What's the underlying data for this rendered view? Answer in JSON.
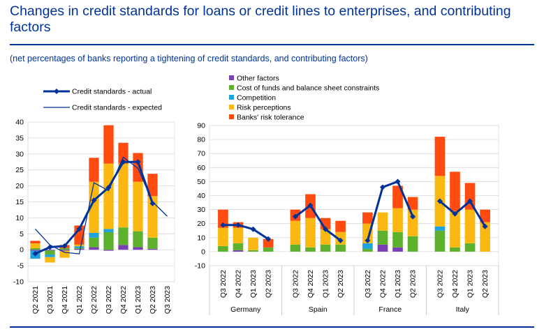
{
  "title": "Changes in credit standards for loans or credit lines to enterprises, and contributing factors",
  "subtitle": "(net percentages of banks reporting a tightening of credit standards, and contributing factors)",
  "colors": {
    "other": "#7B3FB5",
    "cost": "#5DB12D",
    "competition": "#1FA3DC",
    "risk": "#FBB813",
    "tolerance": "#FF4B0F",
    "line": "#003399",
    "grid": "#d9d9d9"
  },
  "chart_data": [
    {
      "type": "bar",
      "stacked": true,
      "x": [
        "Q2 2021",
        "Q3 2021",
        "Q4 2021",
        "Q1 2022",
        "Q2 2022",
        "Q3 2022",
        "Q4 2022",
        "Q1 2023",
        "Q2 2023",
        "Q3 2023"
      ],
      "ylim": [
        -10,
        40
      ],
      "yticks": [
        -10,
        -5,
        0,
        5,
        10,
        15,
        20,
        25,
        30,
        35,
        40
      ],
      "grid": true,
      "legend_position": "top-left",
      "series": [
        {
          "name": "Other factors",
          "key": "other",
          "values": [
            -0.3,
            -0.2,
            -0.3,
            0.3,
            0.8,
            -0.3,
            1.5,
            0.8,
            0.3,
            null
          ]
        },
        {
          "name": "Cost of funds and balance sheet constraints",
          "key": "cost",
          "values": [
            0.5,
            -1.3,
            0.5,
            0.3,
            3,
            5.5,
            5.5,
            5,
            3.5,
            null
          ]
        },
        {
          "name": "Competition",
          "key": "competition",
          "values": [
            -2.5,
            -0.8,
            0,
            0.5,
            1.5,
            1,
            0,
            0,
            0,
            null
          ]
        },
        {
          "name": "Risk perceptions",
          "key": "risk",
          "values": [
            1.5,
            -1.7,
            -2.2,
            0.5,
            16,
            20.5,
            20,
            15.5,
            13,
            null
          ]
        },
        {
          "name": "Banks' risk tolerance",
          "key": "tolerance",
          "values": [
            0.8,
            0,
            1,
            6,
            7.5,
            12,
            6.5,
            9,
            7,
            null
          ]
        }
      ],
      "lines": [
        {
          "name": "Credit standards - actual",
          "values": [
            -1.2,
            0.8,
            1.2,
            6.5,
            15.5,
            19.5,
            27.5,
            27.5,
            14.5,
            null
          ]
        },
        {
          "name": "Credit standards - expected",
          "values": [
            6.5,
            1.5,
            -0.8,
            -1.3,
            21,
            18.5,
            29,
            25.5,
            15,
            10.5
          ]
        }
      ]
    },
    {
      "type": "bar",
      "stacked": true,
      "ylim": [
        -10,
        90
      ],
      "yticks": [
        -10,
        0,
        10,
        20,
        30,
        40,
        50,
        60,
        70,
        80,
        90
      ],
      "grid": true,
      "legend_position": "top-left",
      "groups": [
        {
          "name": "Germany",
          "x": [
            "Q3 2022",
            "Q4 2022",
            "Q1 2023",
            "Q2 2023"
          ],
          "series": {
            "other": [
              0,
              1,
              0,
              0
            ],
            "cost": [
              4,
              5,
              1,
              3
            ],
            "competition": [
              0,
              0,
              0,
              0
            ],
            "risk": [
              13,
              11,
              9,
              0
            ],
            "tolerance": [
              13,
              4,
              0,
              6
            ]
          },
          "actual": [
            19,
            19,
            16,
            9
          ]
        },
        {
          "name": "Spain",
          "x": [
            "Q3 2022",
            "Q4 2022",
            "Q1 2023",
            "Q2 2023"
          ],
          "series": {
            "other": [
              0,
              0,
              0,
              0
            ],
            "cost": [
              5,
              3,
              5,
              5
            ],
            "competition": [
              0,
              0,
              0,
              0
            ],
            "risk": [
              17,
              21,
              11,
              9
            ],
            "tolerance": [
              8,
              17,
              8,
              8
            ]
          },
          "actual": [
            25,
            33,
            16,
            8
          ]
        },
        {
          "name": "France",
          "x": [
            "Q3 2022",
            "Q4 2022",
            "Q1 2023",
            "Q2 2023"
          ],
          "series": {
            "other": [
              0,
              5,
              3,
              0
            ],
            "cost": [
              2,
              10,
              11,
              11
            ],
            "competition": [
              4,
              0,
              0,
              0
            ],
            "risk": [
              14,
              13,
              17,
              19
            ],
            "tolerance": [
              8,
              0,
              16,
              9
            ]
          },
          "actual": [
            8,
            46,
            50,
            25
          ]
        },
        {
          "name": "Italy",
          "x": [
            "Q3 2022",
            "Q4 2022",
            "Q1 2023",
            "Q2 2023"
          ],
          "series": {
            "other": [
              0,
              0,
              0,
              0
            ],
            "cost": [
              15,
              3,
              6,
              0
            ],
            "competition": [
              3,
              0,
              0,
              0
            ],
            "risk": [
              36,
              26,
              24,
              21
            ],
            "tolerance": [
              28,
              28,
              19,
              9
            ]
          },
          "actual": [
            36,
            27,
            36,
            18
          ]
        }
      ],
      "legend": [
        "Other factors",
        "Cost of funds and balance sheet constraints",
        "Competition",
        "Risk perceptions",
        "Banks' risk tolerance"
      ]
    }
  ]
}
